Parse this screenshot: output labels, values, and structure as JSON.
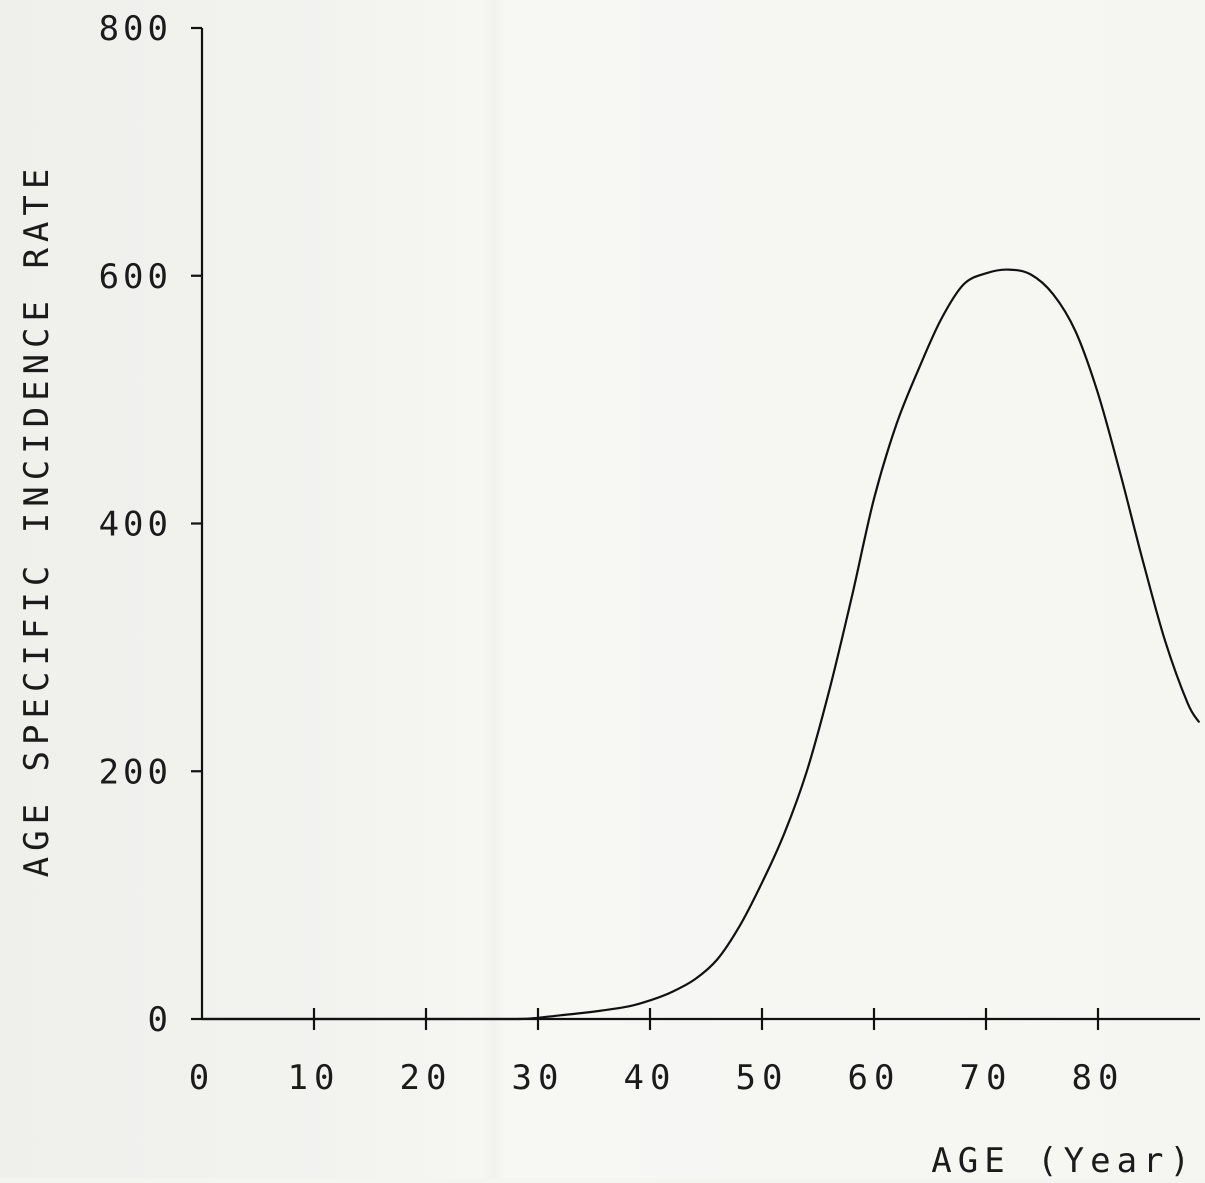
{
  "chart_data": {
    "type": "line",
    "title": "",
    "xlabel": "AGE (Year)",
    "ylabel": "AGE SPECIFIC INCIDENCE RATE",
    "xlim": [
      0,
      89
    ],
    "ylim": [
      0,
      800
    ],
    "x_ticks": [
      0,
      10,
      20,
      30,
      40,
      50,
      60,
      70,
      80
    ],
    "x_tick_labels": [
      "0",
      "10",
      "20",
      "30",
      "40",
      "50",
      "60",
      "70",
      "80"
    ],
    "y_ticks": [
      0,
      200,
      400,
      600,
      800
    ],
    "y_tick_labels": [
      "0",
      "200",
      "400",
      "600",
      "800"
    ],
    "grid": false,
    "legend": "none",
    "line_color": "#111111",
    "series": [
      {
        "x": [
          0,
          10,
          20,
          28,
          30,
          32,
          35,
          38,
          40,
          42,
          44,
          46,
          48,
          50,
          52,
          54,
          56,
          58,
          60,
          62,
          64,
          66,
          68,
          70,
          72,
          74,
          76,
          78,
          80,
          82,
          84,
          86,
          88,
          89
        ],
        "y": [
          0,
          0,
          0,
          0,
          1,
          3,
          6,
          10,
          15,
          22,
          32,
          48,
          75,
          110,
          150,
          200,
          265,
          340,
          420,
          480,
          525,
          565,
          593,
          602,
          605,
          601,
          585,
          555,
          505,
          440,
          370,
          305,
          255,
          240
        ]
      }
    ]
  }
}
